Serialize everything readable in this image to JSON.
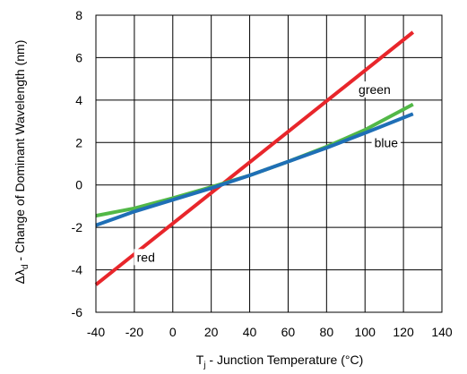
{
  "chart_data": {
    "type": "line",
    "xlabel": {
      "prefix": "T",
      "sub": "j",
      "rest": " - Junction Temperature (°C)"
    },
    "ylabel": {
      "prefix": "Δλ",
      "sub": "d",
      "rest": " - Change of Dominant Wavelength (nm)"
    },
    "xlim": [
      -40,
      140
    ],
    "ylim": [
      -6,
      8
    ],
    "xticks": [
      -40,
      -20,
      0,
      20,
      40,
      60,
      80,
      100,
      120,
      140
    ],
    "yticks": [
      -6,
      -4,
      -2,
      0,
      2,
      4,
      6,
      8
    ],
    "grid": true,
    "series": [
      {
        "name": "red",
        "color": "#e8262b",
        "x": [
          -40,
          125
        ],
        "y": [
          -4.7,
          7.2
        ]
      },
      {
        "name": "green",
        "color": "#52b847",
        "x": [
          -40,
          -20,
          0,
          20,
          40,
          60,
          80,
          100,
          125
        ],
        "y": [
          -1.45,
          -1.1,
          -0.62,
          -0.1,
          0.45,
          1.1,
          1.8,
          2.6,
          3.8
        ]
      },
      {
        "name": "blue",
        "color": "#1f6fb6",
        "x": [
          -40,
          -20,
          0,
          20,
          40,
          60,
          80,
          100,
          125
        ],
        "y": [
          -1.9,
          -1.25,
          -0.7,
          -0.15,
          0.45,
          1.1,
          1.75,
          2.45,
          3.35
        ]
      }
    ]
  }
}
